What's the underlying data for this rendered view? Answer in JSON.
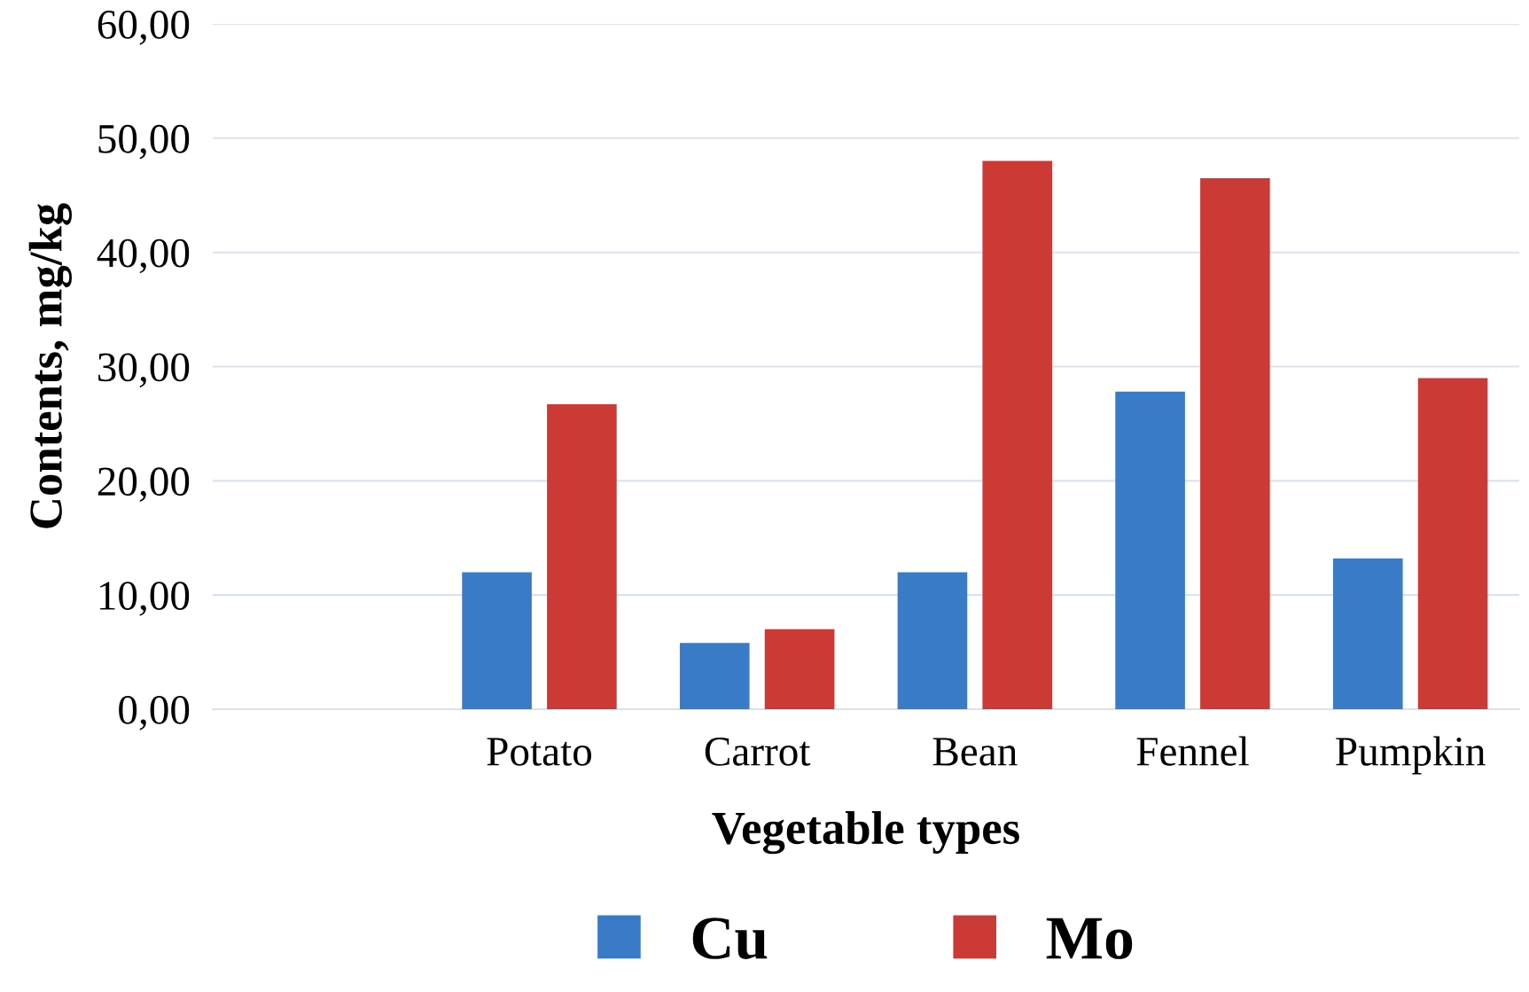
{
  "chart_data": {
    "type": "bar",
    "xlabel": "Vegetable types",
    "ylabel": "Contents, mg/kg",
    "categories": [
      null,
      "Potato",
      "Carrot",
      "Bean",
      "Fennel",
      "Pumpkin"
    ],
    "series": [
      {
        "name": "Cu",
        "color": "#3a7bc8",
        "values": [
          null,
          12.0,
          5.8,
          12.0,
          27.8,
          13.2
        ]
      },
      {
        "name": "Mo",
        "color": "#cc3a36",
        "values": [
          null,
          26.7,
          7.0,
          48.0,
          46.5,
          29.0
        ]
      }
    ],
    "ylim": [
      0,
      60
    ],
    "yticks": [
      {
        "value": 0,
        "label": "0,00"
      },
      {
        "value": 10,
        "label": "10,00"
      },
      {
        "value": 20,
        "label": "20,00"
      },
      {
        "value": 30,
        "label": "30,00"
      },
      {
        "value": 40,
        "label": "40,00"
      },
      {
        "value": 50,
        "label": "50,00"
      },
      {
        "value": 60,
        "label": "60,00"
      }
    ],
    "grid": "y",
    "legend": "bottom"
  }
}
